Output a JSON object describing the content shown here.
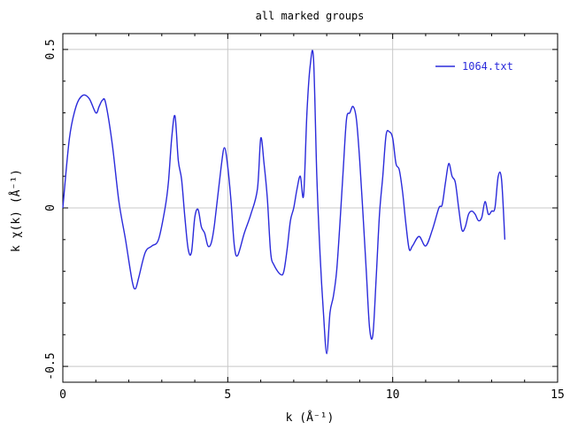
{
  "chart_data": {
    "type": "line",
    "title": "all marked groups",
    "xlabel": "k (Å⁻¹)",
    "ylabel": "k χ(k) (Å⁻¹)",
    "xlim": [
      0,
      15
    ],
    "ylim": [
      -0.55,
      0.55
    ],
    "xticks": [
      0,
      5,
      10,
      15
    ],
    "xtick_labels": [
      "0",
      "5",
      "10",
      "15"
    ],
    "yticks": [
      -0.5,
      0,
      0.5
    ],
    "ytick_labels": [
      "-0.5",
      "0",
      "0.5"
    ],
    "grid": true,
    "legend_position": "top-right",
    "colors": {
      "series": "#2b2bdb",
      "grid": "#c8c8c8",
      "axis": "#000000"
    },
    "series": [
      {
        "name": "1064.txt",
        "x": [
          0.0,
          0.2,
          0.4,
          0.6,
          0.8,
          1.0,
          1.1,
          1.2,
          1.3,
          1.5,
          1.7,
          1.9,
          2.1,
          2.2,
          2.3,
          2.5,
          2.7,
          2.9,
          3.1,
          3.2,
          3.3,
          3.4,
          3.5,
          3.6,
          3.7,
          3.8,
          3.9,
          4.0,
          4.1,
          4.2,
          4.3,
          4.4,
          4.5,
          4.6,
          4.8,
          4.9,
          5.0,
          5.1,
          5.2,
          5.3,
          5.5,
          5.7,
          5.9,
          6.0,
          6.1,
          6.2,
          6.3,
          6.4,
          6.6,
          6.7,
          6.8,
          6.9,
          7.0,
          7.1,
          7.2,
          7.3,
          7.4,
          7.5,
          7.6,
          7.7,
          7.8,
          7.9,
          8.0,
          8.1,
          8.2,
          8.3,
          8.4,
          8.5,
          8.6,
          8.7,
          8.8,
          8.9,
          9.0,
          9.1,
          9.2,
          9.3,
          9.4,
          9.5,
          9.6,
          9.7,
          9.8,
          9.9,
          10.0,
          10.1,
          10.2,
          10.3,
          10.4,
          10.5,
          10.6,
          10.8,
          11.0,
          11.2,
          11.4,
          11.5,
          11.6,
          11.7,
          11.8,
          11.9,
          12.0,
          12.1,
          12.2,
          12.3,
          12.4,
          12.5,
          12.6,
          12.7,
          12.8,
          12.9,
          13.0,
          13.1,
          13.2,
          13.3,
          13.4
        ],
        "y": [
          0.0,
          0.22,
          0.32,
          0.355,
          0.345,
          0.3,
          0.32,
          0.34,
          0.33,
          0.2,
          0.02,
          -0.1,
          -0.23,
          -0.255,
          -0.22,
          -0.14,
          -0.12,
          -0.1,
          0.0,
          0.08,
          0.22,
          0.29,
          0.15,
          0.09,
          -0.03,
          -0.13,
          -0.14,
          -0.03,
          -0.005,
          -0.06,
          -0.08,
          -0.12,
          -0.11,
          -0.05,
          0.13,
          0.19,
          0.13,
          0.02,
          -0.12,
          -0.15,
          -0.08,
          -0.02,
          0.06,
          0.22,
          0.14,
          0.03,
          -0.14,
          -0.18,
          -0.21,
          -0.2,
          -0.13,
          -0.04,
          0.0,
          0.06,
          0.1,
          0.04,
          0.3,
          0.45,
          0.47,
          0.1,
          -0.15,
          -0.33,
          -0.46,
          -0.33,
          -0.28,
          -0.2,
          -0.05,
          0.12,
          0.28,
          0.3,
          0.32,
          0.28,
          0.15,
          -0.02,
          -0.2,
          -0.38,
          -0.4,
          -0.22,
          -0.02,
          0.1,
          0.23,
          0.24,
          0.22,
          0.14,
          0.12,
          0.05,
          -0.05,
          -0.13,
          -0.12,
          -0.09,
          -0.12,
          -0.07,
          0.0,
          0.01,
          0.08,
          0.14,
          0.1,
          0.08,
          0.0,
          -0.07,
          -0.06,
          -0.02,
          -0.01,
          -0.02,
          -0.04,
          -0.03,
          0.02,
          -0.02,
          -0.01,
          0.0,
          0.1,
          0.09,
          -0.1
        ]
      }
    ]
  }
}
